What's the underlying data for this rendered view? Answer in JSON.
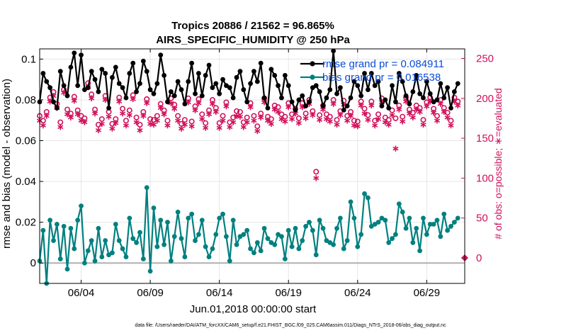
{
  "chart_data": {
    "type": "line",
    "title_line1": "Tropics 20886 / 21562 = 96.865%",
    "title_line2": "AIRS_SPECIFIC_HUMIDITY @ 250 hPa",
    "ylabel_left": "rmse and bias (model - observation)",
    "ylabel_right": "# of obs: o=possible; ∗=evaluated",
    "xlabel": "Jun.01,2018 00:00:00 start",
    "footer": "data file: /Users/raeder/DAI/ATM_forcXX/CAM6_setup/f.e21.FHIST_BGC.f09_025.CAM6assim.011/Diags_NTrS_2018-06/obs_diag_output.nc",
    "xlim": [
      1,
      31.75
    ],
    "ylim_left": [
      -0.01,
      0.105
    ],
    "ylim_right": [
      -32,
      262
    ],
    "x_ticks": [
      {
        "value": 4,
        "label": "06/04"
      },
      {
        "value": 9,
        "label": "06/09"
      },
      {
        "value": 14,
        "label": "06/14"
      },
      {
        "value": 19,
        "label": "06/19"
      },
      {
        "value": 24,
        "label": "06/24"
      },
      {
        "value": 29,
        "label": "06/29"
      }
    ],
    "y_ticks_left": [
      {
        "value": 0,
        "label": "0"
      },
      {
        "value": 0.02,
        "label": "0.02"
      },
      {
        "value": 0.04,
        "label": "0.04"
      },
      {
        "value": 0.06,
        "label": "0.06"
      },
      {
        "value": 0.08,
        "label": "0.08"
      },
      {
        "value": 0.1,
        "label": "0.1"
      }
    ],
    "y_ticks_right": [
      {
        "value": 0,
        "label": "0"
      },
      {
        "value": 50,
        "label": "50"
      },
      {
        "value": 100,
        "label": "100"
      },
      {
        "value": 150,
        "label": "150"
      },
      {
        "value": 200,
        "label": "200"
      },
      {
        "value": 250,
        "label": "250"
      }
    ],
    "grid": true,
    "legend_position": "top-right",
    "colors": {
      "rmse": "#000000",
      "bias": "#00807f",
      "counts": "#d1105a",
      "legend_text": "#0a4cd6",
      "zero_line": "#b0b0b0",
      "grid": "#e6e6e6"
    },
    "series": [
      {
        "name": "rmse grand pr = 0.084911",
        "axis": "left",
        "x": [
          1.0,
          1.25,
          1.5,
          1.75,
          2.0,
          2.25,
          2.5,
          2.75,
          3.0,
          3.25,
          3.5,
          3.75,
          4.0,
          4.25,
          4.5,
          4.75,
          5.0,
          5.25,
          5.5,
          5.75,
          6.0,
          6.25,
          6.5,
          6.75,
          7.0,
          7.25,
          7.5,
          7.75,
          8.0,
          8.25,
          8.5,
          8.75,
          9.0,
          9.25,
          9.5,
          9.75,
          10.0,
          10.25,
          10.5,
          10.75,
          11.0,
          11.25,
          11.5,
          11.75,
          12.0,
          12.25,
          12.5,
          12.75,
          13.0,
          13.25,
          13.5,
          13.75,
          14.0,
          14.25,
          14.5,
          14.75,
          15.0,
          15.25,
          15.5,
          15.75,
          16.0,
          16.25,
          16.5,
          16.75,
          17.0,
          17.25,
          17.5,
          17.75,
          18.0,
          18.25,
          18.5,
          18.75,
          19.0,
          19.25,
          19.5,
          19.75,
          20.0,
          20.25,
          20.5,
          20.75,
          21.0,
          21.25,
          21.5,
          21.75,
          22.0,
          22.25,
          22.5,
          22.75,
          23.0,
          23.25,
          23.5,
          23.75,
          24.0,
          24.25,
          24.5,
          24.75,
          25.0,
          25.25,
          25.5,
          25.75,
          26.0,
          26.25,
          26.5,
          26.75,
          27.0,
          27.25,
          27.5,
          27.75,
          28.0,
          28.25,
          28.5,
          28.75,
          29.0,
          29.25,
          29.5,
          29.75,
          30.0,
          30.25,
          30.5,
          30.75,
          31.0,
          31.25
        ],
        "values": [
          0.079,
          0.093,
          0.089,
          0.086,
          0.079,
          0.076,
          0.094,
          0.087,
          0.082,
          0.096,
          0.103,
          0.087,
          0.102,
          0.085,
          0.086,
          0.094,
          0.09,
          0.084,
          0.095,
          0.093,
          0.076,
          0.091,
          0.096,
          0.088,
          0.086,
          0.081,
          0.093,
          0.098,
          0.084,
          0.088,
          0.099,
          0.094,
          0.085,
          0.083,
          0.088,
          0.102,
          0.092,
          0.079,
          0.084,
          0.082,
          0.089,
          0.085,
          0.078,
          0.089,
          0.098,
          0.083,
          0.093,
          0.082,
          0.092,
          0.097,
          0.086,
          0.088,
          0.083,
          0.09,
          0.087,
          0.086,
          0.081,
          0.091,
          0.094,
          0.085,
          0.079,
          0.088,
          0.094,
          0.089,
          0.098,
          0.081,
          0.076,
          0.095,
          0.092,
          0.087,
          0.081,
          0.092,
          0.087,
          0.079,
          0.075,
          0.08,
          0.082,
          0.077,
          0.079,
          0.086,
          0.087,
          0.084,
          0.077,
          0.081,
          0.085,
          0.104,
          0.083,
          0.086,
          0.075,
          0.077,
          0.081,
          0.089,
          0.087,
          0.082,
          0.093,
          0.085,
          0.093,
          0.087,
          0.089,
          0.077,
          0.08,
          0.076,
          0.087,
          0.079,
          0.093,
          0.089,
          0.082,
          0.078,
          0.084,
          0.092,
          0.083,
          0.081,
          0.089,
          0.083,
          0.079,
          0.08,
          0.088,
          0.081,
          0.086,
          0.076,
          0.084,
          0.088
        ],
        "color": "#000000",
        "marker": "filled-circle"
      },
      {
        "name": "bias grand pr = 0.016538",
        "axis": "left",
        "x": [
          1.0,
          1.25,
          1.5,
          1.75,
          2.0,
          2.25,
          2.5,
          2.75,
          3.0,
          3.25,
          3.5,
          3.75,
          4.0,
          4.25,
          4.5,
          4.75,
          5.0,
          5.25,
          5.5,
          5.75,
          6.0,
          6.25,
          6.5,
          6.75,
          7.0,
          7.25,
          7.5,
          7.75,
          8.0,
          8.25,
          8.5,
          8.75,
          9.0,
          9.25,
          9.5,
          9.75,
          10.0,
          10.25,
          10.5,
          10.75,
          11.0,
          11.25,
          11.5,
          11.75,
          12.0,
          12.25,
          12.5,
          12.75,
          13.0,
          13.25,
          13.5,
          13.75,
          14.0,
          14.25,
          14.5,
          14.75,
          15.0,
          15.25,
          15.5,
          15.75,
          16.0,
          16.25,
          16.5,
          16.75,
          17.0,
          17.25,
          17.5,
          17.75,
          18.0,
          18.25,
          18.5,
          18.75,
          19.0,
          19.25,
          19.5,
          19.75,
          20.0,
          20.25,
          20.5,
          20.75,
          21.0,
          21.25,
          21.5,
          21.75,
          22.0,
          22.25,
          22.5,
          22.75,
          23.0,
          23.25,
          23.5,
          23.75,
          24.0,
          24.25,
          24.5,
          24.75,
          25.0,
          25.25,
          25.5,
          25.75,
          26.0,
          26.25,
          26.5,
          26.75,
          27.0,
          27.25,
          27.5,
          27.75,
          28.0,
          28.25,
          28.5,
          28.75,
          29.0,
          29.25,
          29.5,
          29.75,
          30.0,
          30.25,
          30.5,
          30.75,
          31.0,
          31.25
        ],
        "values": [
          0.001,
          0.016,
          -0.01,
          0.021,
          0.011,
          0.019,
          0.002,
          0.018,
          -0.003,
          0.017,
          0.007,
          0.021,
          0.028,
          0.0,
          0.006,
          0.011,
          0.001,
          0.017,
          0.003,
          0.011,
          0.004,
          0.005,
          0.019,
          0.011,
          0.007,
          0.003,
          0.022,
          0.012,
          0.01,
          0.015,
          0.002,
          0.037,
          -0.004,
          0.027,
          0.008,
          0.021,
          0.009,
          0.02,
          0.001,
          0.013,
          0.025,
          0.012,
          0.003,
          0.022,
          0.024,
          0.011,
          0.014,
          0.021,
          0.008,
          0.003,
          0.007,
          0.014,
          0.022,
          0.024,
          0.013,
          0.001,
          0.021,
          0.009,
          0.013,
          0.014,
          0.016,
          0.007,
          0.005,
          0.01,
          0.006,
          0.017,
          0.012,
          0.01,
          0.009,
          0.014,
          0.013,
          0.002,
          0.016,
          0.008,
          0.017,
          0.007,
          0.011,
          0.018,
          0.02,
          0.016,
          0.004,
          0.021,
          0.017,
          0.011,
          0.01,
          0.009,
          0.017,
          0.022,
          0.007,
          0.011,
          0.03,
          0.022,
          0.008,
          0.014,
          0.034,
          0.032,
          0.018,
          0.019,
          0.02,
          0.022,
          0.021,
          0.01,
          0.012,
          0.014,
          0.029,
          0.025,
          0.017,
          0.022,
          0.01,
          0.017,
          0.006,
          0.022,
          0.014,
          0.019,
          0.019,
          0.021,
          0.013,
          0.024,
          0.016,
          0.018,
          0.02,
          0.022
        ],
        "color": "#00807f",
        "marker": "filled-circle"
      },
      {
        "name": "possible",
        "axis": "right",
        "x": [
          1.0,
          1.25,
          1.5,
          1.75,
          2.0,
          2.25,
          2.5,
          2.75,
          3.0,
          3.25,
          3.5,
          3.75,
          4.0,
          4.25,
          4.5,
          4.75,
          5.0,
          5.25,
          5.5,
          5.75,
          6.0,
          6.25,
          6.5,
          6.75,
          7.0,
          7.25,
          7.5,
          7.75,
          8.0,
          8.25,
          8.5,
          8.75,
          9.0,
          9.25,
          9.5,
          9.75,
          10.0,
          10.25,
          10.5,
          10.75,
          11.0,
          11.25,
          11.5,
          11.75,
          12.0,
          12.25,
          12.5,
          12.75,
          13.0,
          13.25,
          13.5,
          13.75,
          14.0,
          14.25,
          14.5,
          14.75,
          15.0,
          15.25,
          15.5,
          15.75,
          16.0,
          16.25,
          16.5,
          16.75,
          17.0,
          17.25,
          17.5,
          17.75,
          18.0,
          18.25,
          18.5,
          18.75,
          19.0,
          19.25,
          19.5,
          19.75,
          20.0,
          20.25,
          20.5,
          20.75,
          21.0,
          21.25,
          21.5,
          21.75,
          22.0,
          22.25,
          22.5,
          22.75,
          23.0,
          23.25,
          23.5,
          23.75,
          24.0,
          24.25,
          24.5,
          24.75,
          25.0,
          25.25,
          25.5,
          25.75,
          26.0,
          26.25,
          26.5,
          26.75,
          27.0,
          27.25,
          27.5,
          27.75,
          28.0,
          28.25,
          28.5,
          28.75,
          29.0,
          29.25,
          29.5,
          29.75,
          30.0,
          30.25,
          30.5,
          30.75,
          31.0,
          31.25
        ],
        "values": [
          178,
          172,
          183,
          201,
          208,
          193,
          170,
          211,
          186,
          181,
          202,
          185,
          178,
          175,
          219,
          205,
          186,
          167,
          174,
          203,
          183,
          168,
          174,
          201,
          187,
          172,
          185,
          204,
          176,
          167,
          183,
          199,
          174,
          173,
          178,
          193,
          185,
          172,
          200,
          192,
          178,
          168,
          173,
          200,
          171,
          190,
          199,
          180,
          169,
          185,
          198,
          188,
          169,
          178,
          195,
          170,
          176,
          184,
          183,
          170,
          176,
          194,
          178,
          165,
          181,
          200,
          177,
          174,
          191,
          189,
          180,
          177,
          194,
          180,
          187,
          175,
          194,
          181,
          198,
          184,
          108,
          179,
          191,
          180,
          177,
          198,
          173,
          184,
          197,
          178,
          183,
          172,
          171,
          196,
          187,
          179,
          196,
          172,
          180,
          200,
          176,
          173,
          185,
          175,
          191,
          177,
          201,
          186,
          182,
          191,
          188,
          173,
          195,
          201,
          187,
          178,
          198,
          188,
          182,
          172,
          201,
          196
        ],
        "color": "#d1105a",
        "marker": "open-circle"
      },
      {
        "name": "evaluated",
        "axis": "right",
        "x": [
          1.0,
          1.25,
          1.5,
          1.75,
          2.0,
          2.25,
          2.5,
          2.75,
          3.0,
          3.25,
          3.5,
          3.75,
          4.0,
          4.25,
          4.5,
          4.75,
          5.0,
          5.25,
          5.5,
          5.75,
          6.0,
          6.25,
          6.5,
          6.75,
          7.0,
          7.25,
          7.5,
          7.75,
          8.0,
          8.25,
          8.5,
          8.75,
          9.0,
          9.25,
          9.5,
          9.75,
          10.0,
          10.25,
          10.5,
          10.75,
          11.0,
          11.25,
          11.5,
          11.75,
          12.0,
          12.25,
          12.5,
          12.75,
          13.0,
          13.25,
          13.5,
          13.75,
          14.0,
          14.25,
          14.5,
          14.75,
          15.0,
          15.25,
          15.5,
          15.75,
          16.0,
          16.25,
          16.5,
          16.75,
          17.0,
          17.25,
          17.5,
          17.75,
          18.0,
          18.25,
          18.5,
          18.75,
          19.0,
          19.25,
          19.5,
          19.75,
          20.0,
          20.25,
          20.5,
          20.75,
          21.0,
          21.25,
          21.5,
          21.75,
          22.0,
          22.25,
          22.5,
          22.75,
          23.0,
          23.25,
          23.5,
          23.75,
          24.0,
          24.25,
          24.5,
          24.75,
          25.0,
          25.25,
          25.5,
          25.75,
          26.0,
          26.25,
          26.5,
          26.75,
          27.0,
          27.25,
          27.5,
          27.75,
          28.0,
          28.25,
          28.5,
          28.75,
          29.0,
          29.25,
          29.5,
          29.75,
          30.0,
          30.25,
          30.5,
          30.75,
          31.0,
          31.25
        ],
        "values": [
          172,
          166,
          178,
          196,
          203,
          188,
          164,
          207,
          180,
          176,
          197,
          180,
          172,
          170,
          214,
          200,
          181,
          160,
          168,
          198,
          177,
          162,
          169,
          196,
          181,
          166,
          179,
          199,
          170,
          160,
          178,
          194,
          168,
          167,
          172,
          188,
          180,
          166,
          194,
          187,
          172,
          162,
          167,
          195,
          165,
          185,
          194,
          174,
          163,
          180,
          193,
          183,
          163,
          172,
          190,
          164,
          170,
          178,
          177,
          164,
          170,
          189,
          172,
          159,
          176,
          195,
          172,
          168,
          186,
          183,
          174,
          171,
          189,
          174,
          181,
          169,
          189,
          175,
          193,
          179,
          100,
          173,
          186,
          174,
          171,
          193,
          167,
          179,
          192,
          172,
          178,
          166,
          165,
          191,
          181,
          173,
          191,
          166,
          174,
          195,
          170,
          167,
          179,
          137,
          186,
          171,
          196,
          181,
          176,
          186,
          183,
          167,
          190,
          196,
          182,
          172,
          193,
          183,
          176,
          166,
          196,
          191
        ],
        "color": "#d1105a",
        "marker": "asterisk"
      }
    ]
  }
}
